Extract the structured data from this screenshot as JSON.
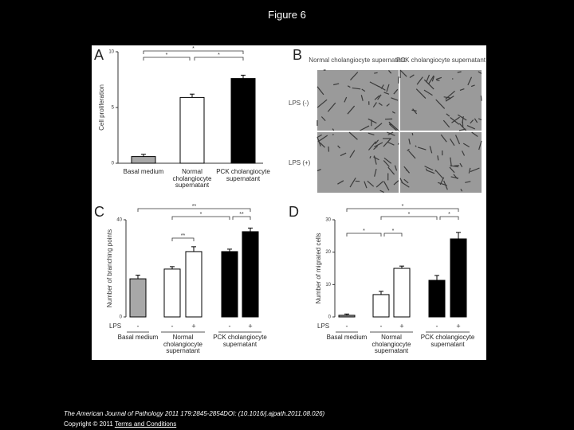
{
  "header": {
    "title": "Figure 6"
  },
  "panel_b": {
    "letter": "B",
    "columns": [
      "Normal cholangiocyte supernatant",
      "PCK cholangiocyte supernatant"
    ],
    "rows": [
      "LPS (-)",
      "LPS (+)"
    ]
  },
  "chart_data": [
    {
      "type": "bar",
      "panel": "A",
      "y_label": "Cell proliferation",
      "categories": [
        "Basal medium",
        "Normal cholangiocyte supernatant",
        "PCK cholangiocyte supernatant"
      ],
      "values": [
        0.6,
        5.9,
        7.6
      ],
      "errors": [
        0.2,
        0.3,
        0.3
      ],
      "colors": [
        "#a8a8a8",
        "#ffffff",
        "#000000"
      ],
      "ylim": [
        0,
        10
      ],
      "yticks": [
        0,
        5,
        10
      ],
      "significance": [
        "*",
        "*",
        "*"
      ]
    },
    {
      "type": "bar",
      "panel": "C",
      "y_label": "Number of branching points",
      "x_label": "LPS",
      "series": [
        {
          "name": "Basal medium",
          "color": "#a8a8a8",
          "lps": [
            "-"
          ],
          "values": [
            15.7
          ],
          "errors": [
            1.5
          ]
        },
        {
          "name": "Normal cholangiocyte supernatant",
          "color": "#ffffff",
          "lps": [
            "-",
            "+"
          ],
          "values": [
            19.7,
            26.9
          ],
          "errors": [
            1.0,
            2.0
          ]
        },
        {
          "name": "PCK cholangiocyte supernatant",
          "color": "#000000",
          "lps": [
            "-",
            "+"
          ],
          "values": [
            26.9,
            35.1
          ],
          "errors": [
            1.0,
            1.5
          ]
        }
      ],
      "ylim": [
        0,
        40
      ],
      "yticks": [
        0,
        40
      ],
      "significance": [
        "**",
        "*",
        "**",
        "**"
      ]
    },
    {
      "type": "bar",
      "panel": "D",
      "y_label": "Number of migrated cells",
      "x_label": "LPS",
      "series": [
        {
          "name": "Basal medium",
          "color": "#a8a8a8",
          "lps": [
            "-"
          ],
          "values": [
            0.5
          ],
          "errors": [
            0.4
          ]
        },
        {
          "name": "Normal cholangiocyte supernatant",
          "color": "#ffffff",
          "lps": [
            "-",
            "+"
          ],
          "values": [
            6.9,
            15.0
          ],
          "errors": [
            1.0,
            0.7
          ]
        },
        {
          "name": "PCK cholangiocyte supernatant",
          "color": "#000000",
          "lps": [
            "-",
            "+"
          ],
          "values": [
            11.3,
            24.1
          ],
          "errors": [
            1.5,
            2.0
          ]
        }
      ],
      "ylim": [
        0,
        30
      ],
      "yticks": [
        0,
        10,
        20,
        30
      ],
      "significance": [
        "*",
        "*",
        "*",
        "*",
        "*"
      ]
    }
  ],
  "footer": {
    "citation": "The American Journal of Pathology 2011 179:2845-2854DOI: (10.1016/j.ajpath.2011.08.026)",
    "copyright": "Copyright © 2011 ",
    "link": "Terms and Conditions"
  }
}
